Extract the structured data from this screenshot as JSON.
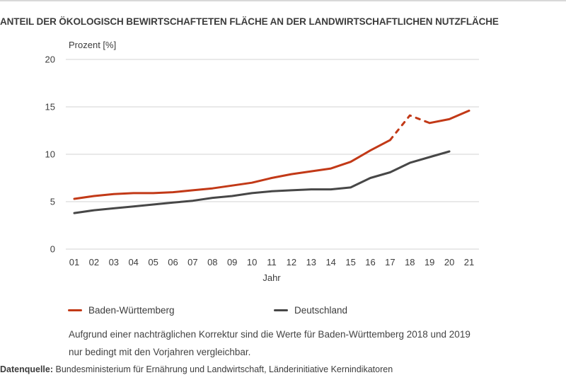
{
  "page": {
    "title": "ANTEIL DER ÖKOLOGISCH BEWIRTSCHAFTETEN FLÄCHE AN DER LANDWIRTSCHAFTLICHEN NUTZFLÄCHE",
    "footnote_line1": "Aufgrund einer nachträglichen Korrektur sind die Werte für Baden-Württemberg 2018 und 2019",
    "footnote_line2": "nur bedingt mit den Vorjahren vergleichbar.",
    "source_label": "Datenquelle:",
    "source_text": "Bundesministerium für Ernährung und Landwirtschaft, Länderinitiative Kernindikatoren"
  },
  "chart_data": {
    "type": "line",
    "title": "Anteil der ökologisch bewirtschafteten Fläche an der landwirtschaftlichen Nutzfläche",
    "ylabel": "Prozent [%]",
    "xlabel": "Jahr",
    "ylim": [
      0,
      20
    ],
    "yticks": [
      0,
      5,
      10,
      15,
      20
    ],
    "grid": "horizontal-only",
    "gridline_color": "#dcdcdc",
    "axis_text_color": "#3d3d3d",
    "legend_position": "bottom",
    "categories": [
      "01",
      "02",
      "03",
      "04",
      "05",
      "06",
      "07",
      "08",
      "09",
      "10",
      "11",
      "12",
      "13",
      "14",
      "15",
      "16",
      "17",
      "18",
      "19",
      "20",
      "21"
    ],
    "series": [
      {
        "name": "Baden-Württemberg",
        "color": "#c23917",
        "values": [
          5.3,
          5.6,
          5.8,
          5.9,
          5.9,
          6.0,
          6.2,
          6.4,
          6.7,
          7.0,
          7.5,
          7.9,
          8.2,
          8.5,
          9.2,
          10.4,
          11.5,
          14.1,
          13.3,
          13.7,
          14.6
        ],
        "dashed_from_index": 16,
        "dashed_to_index": 18,
        "dashed_note": "Werte 2018 und 2019 gestrichelt (nachträgliche Korrektur)"
      },
      {
        "name": "Deutschland",
        "color": "#474747",
        "values": [
          3.8,
          4.1,
          4.3,
          4.5,
          4.7,
          4.9,
          5.1,
          5.4,
          5.6,
          5.9,
          6.1,
          6.2,
          6.3,
          6.3,
          6.5,
          7.5,
          8.1,
          9.1,
          9.7,
          10.3
        ]
      }
    ]
  }
}
